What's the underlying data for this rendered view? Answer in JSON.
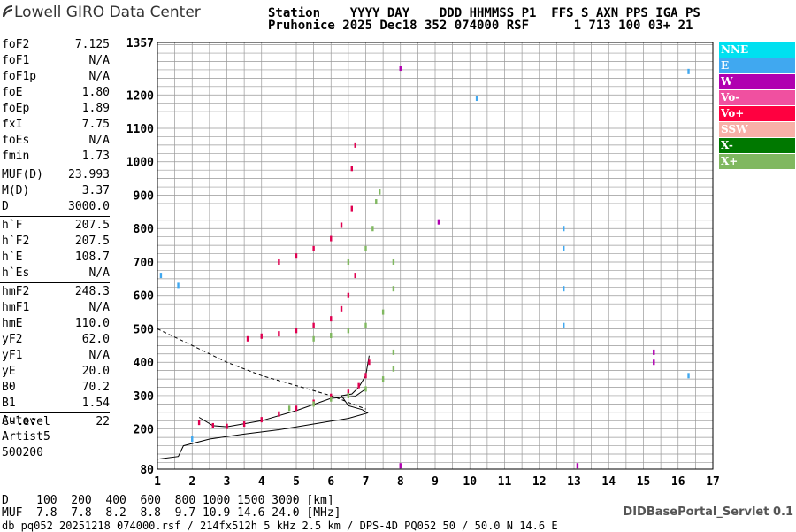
{
  "header": {
    "logo_text": "Lowell GIRO Data Center",
    "line1": "Station    YYYY DAY    DDD HHMMSS P1  FFS S AXN PPS IGA PS",
    "line2": "Pruhonice 2025 Dec18 352 074000 RSF      1 713 100 03+ 21"
  },
  "params": [
    {
      "k": "foF2",
      "v": "7.125"
    },
    {
      "k": "foF1",
      "v": "N/A"
    },
    {
      "k": "foF1p",
      "v": "N/A"
    },
    {
      "k": "foE",
      "v": "1.80"
    },
    {
      "k": "foEp",
      "v": "1.89"
    },
    {
      "k": "fxI",
      "v": "7.75"
    },
    {
      "k": "foEs",
      "v": "N/A"
    },
    {
      "k": "fmin",
      "v": "1.73"
    },
    {
      "k": "MUF(D)",
      "v": "23.993"
    },
    {
      "k": "M(D)",
      "v": "3.37"
    },
    {
      "k": "D",
      "v": "3000.0"
    },
    {
      "k": "h`F",
      "v": "207.5"
    },
    {
      "k": "h`F2",
      "v": "207.5"
    },
    {
      "k": "h`E",
      "v": "108.7"
    },
    {
      "k": "h`Es",
      "v": "N/A"
    },
    {
      "k": "hmF2",
      "v": "248.3"
    },
    {
      "k": "hmF1",
      "v": "N/A"
    },
    {
      "k": "hmE",
      "v": "110.0"
    },
    {
      "k": "yF2",
      "v": "62.0"
    },
    {
      "k": "yF1",
      "v": "N/A"
    },
    {
      "k": "yE",
      "v": "20.0"
    },
    {
      "k": "B0",
      "v": "70.2"
    },
    {
      "k": "B1",
      "v": "1.54"
    },
    {
      "k": "C-level",
      "v": "22"
    }
  ],
  "auto": {
    "l1": "Auto:",
    "l2": "Artist5",
    "l3": "500200"
  },
  "legend": [
    {
      "label": "NNE",
      "color": "#00e0f0"
    },
    {
      "label": "E",
      "color": "#40a8f0"
    },
    {
      "label": "W",
      "color": "#b000b0"
    },
    {
      "label": "Vo-",
      "color": "#f050a0"
    },
    {
      "label": "Vo+",
      "color": "#ff0040"
    },
    {
      "label": "SSW",
      "color": "#f8b0a8"
    },
    {
      "label": "X-",
      "color": "#007800"
    },
    {
      "label": "X+",
      "color": "#80b860"
    }
  ],
  "bottom": {
    "d_row": "D    100  200  400  600  800 1000 1500 3000 [km]",
    "muf_row": "MUF  7.8  7.8  8.2  8.8  9.7 10.9 14.6 24.0 [MHz]",
    "file_row": "db pq052 20251218 074000.rsf / 214fx512h 5 kHz 2.5 km / DPS-4D PQ052 50 / 50.0 N 14.6 E",
    "servlet": "DIDBasePortal_Servlet 0.1"
  },
  "chart_data": {
    "type": "scatter",
    "title": "",
    "xlabel": "",
    "ylabel": "",
    "xlim": [
      1,
      17
    ],
    "ylim": [
      80,
      1357
    ],
    "x_ticks": [
      1,
      2,
      3,
      4,
      5,
      6,
      7,
      8,
      9,
      10,
      11,
      12,
      13,
      14,
      15,
      16,
      17
    ],
    "y_ticks": [
      80,
      200,
      300,
      400,
      500,
      600,
      700,
      800,
      900,
      1000,
      1100,
      1200,
      1357
    ],
    "grid": true,
    "series": [
      {
        "name": "Vo+",
        "color": "#e00050",
        "points": [
          [
            2.2,
            220
          ],
          [
            2.6,
            210
          ],
          [
            3.0,
            208
          ],
          [
            3.5,
            215
          ],
          [
            4.0,
            228
          ],
          [
            4.5,
            245
          ],
          [
            5.0,
            262
          ],
          [
            5.5,
            280
          ],
          [
            6.0,
            298
          ],
          [
            6.5,
            310
          ],
          [
            6.8,
            330
          ],
          [
            7.0,
            360
          ],
          [
            7.1,
            400
          ],
          [
            3.6,
            470
          ],
          [
            4.0,
            478
          ],
          [
            4.5,
            485
          ],
          [
            5.0,
            495
          ],
          [
            5.5,
            510
          ],
          [
            6.0,
            530
          ],
          [
            6.3,
            560
          ],
          [
            6.5,
            600
          ],
          [
            6.7,
            660
          ],
          [
            4.5,
            700
          ],
          [
            5.0,
            718
          ],
          [
            5.5,
            740
          ],
          [
            6.0,
            770
          ],
          [
            6.3,
            810
          ],
          [
            6.6,
            860
          ],
          [
            6.6,
            980
          ],
          [
            6.7,
            1050
          ]
        ]
      },
      {
        "name": "X+",
        "color": "#80b860",
        "points": [
          [
            4.8,
            262
          ],
          [
            5.5,
            275
          ],
          [
            6.0,
            290
          ],
          [
            6.5,
            300
          ],
          [
            7.0,
            320
          ],
          [
            7.5,
            350
          ],
          [
            7.8,
            380
          ],
          [
            7.8,
            430
          ],
          [
            5.5,
            470
          ],
          [
            6.0,
            480
          ],
          [
            6.5,
            495
          ],
          [
            7.0,
            510
          ],
          [
            7.5,
            550
          ],
          [
            7.8,
            620
          ],
          [
            7.8,
            700
          ],
          [
            6.5,
            700
          ],
          [
            7.0,
            740
          ],
          [
            7.2,
            800
          ],
          [
            7.3,
            880
          ],
          [
            7.4,
            910
          ]
        ]
      },
      {
        "name": "E",
        "color": "#40a8f0",
        "points": [
          [
            12.7,
            510
          ],
          [
            12.7,
            620
          ],
          [
            12.7,
            740
          ],
          [
            12.7,
            800
          ],
          [
            16.3,
            360
          ],
          [
            16.3,
            1270
          ],
          [
            2.0,
            170
          ],
          [
            1.1,
            660
          ],
          [
            1.6,
            630
          ],
          [
            10.2,
            1190
          ]
        ]
      },
      {
        "name": "W",
        "color": "#b000b0",
        "points": [
          [
            8.0,
            1280
          ],
          [
            8.0,
            90
          ],
          [
            13.1,
            90
          ],
          [
            15.3,
            400
          ],
          [
            15.3,
            430
          ],
          [
            9.1,
            820
          ]
        ]
      }
    ],
    "annotations": {
      "trace_solid": [
        [
          1.0,
          110
        ],
        [
          1.6,
          118
        ],
        [
          1.75,
          150
        ],
        [
          2.5,
          170
        ],
        [
          3.5,
          185
        ],
        [
          4.5,
          198
        ],
        [
          5.5,
          215
        ],
        [
          6.5,
          232
        ],
        [
          7.05,
          248
        ],
        [
          6.9,
          258
        ],
        [
          6.5,
          270
        ],
        [
          6.3,
          300
        ],
        [
          6.6,
          305
        ],
        [
          6.8,
          325
        ],
        [
          7.0,
          360
        ],
        [
          7.1,
          420
        ]
      ],
      "trace_dashed": [
        [
          1.0,
          500
        ],
        [
          2.0,
          450
        ],
        [
          3.0,
          400
        ],
        [
          4.0,
          360
        ],
        [
          5.0,
          330
        ],
        [
          6.0,
          300
        ],
        [
          7.0,
          260
        ]
      ],
      "lower_trace": [
        [
          2.2,
          235
        ],
        [
          2.6,
          210
        ],
        [
          3.0,
          207
        ],
        [
          4.0,
          225
        ],
        [
          5.0,
          255
        ],
        [
          6.0,
          292
        ],
        [
          6.7,
          298
        ],
        [
          7.0,
          320
        ]
      ]
    }
  }
}
